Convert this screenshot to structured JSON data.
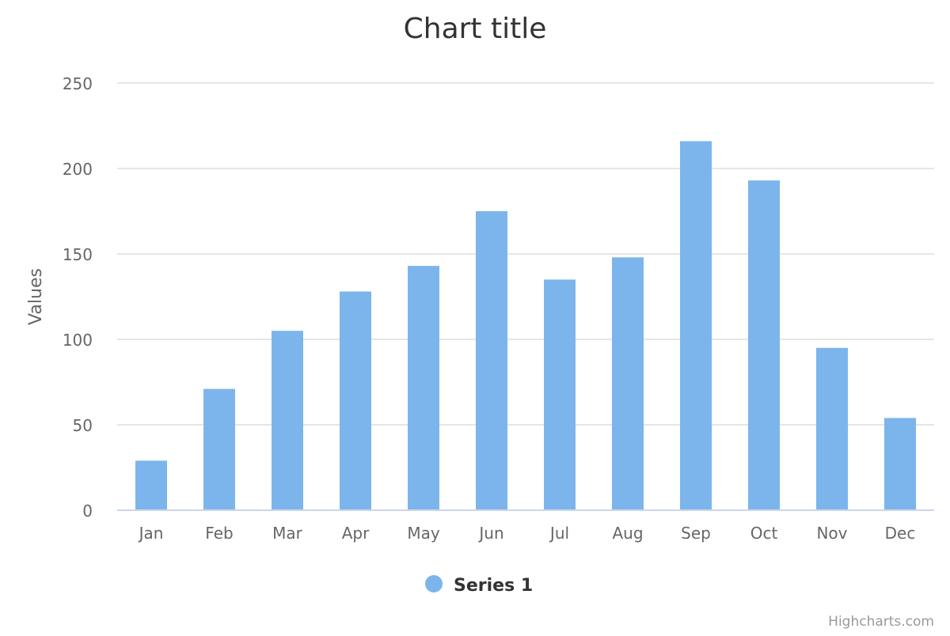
{
  "chart_data": {
    "type": "bar",
    "title": "Chart title",
    "ylabel": "Values",
    "xlabel": "",
    "categories": [
      "Jan",
      "Feb",
      "Mar",
      "Apr",
      "May",
      "Jun",
      "Jul",
      "Aug",
      "Sep",
      "Oct",
      "Nov",
      "Dec"
    ],
    "series": [
      {
        "name": "Series 1",
        "color": "#7cb5ec",
        "values": [
          29,
          71,
          105,
          128,
          143,
          175,
          135,
          148,
          216,
          193,
          95,
          54
        ]
      }
    ],
    "ylim": [
      0,
      250
    ],
    "yticks": [
      "0",
      "50",
      "100",
      "150",
      "200",
      "250"
    ],
    "grid": true,
    "legend_position": "bottom-center",
    "credits": "Highcharts.com"
  }
}
